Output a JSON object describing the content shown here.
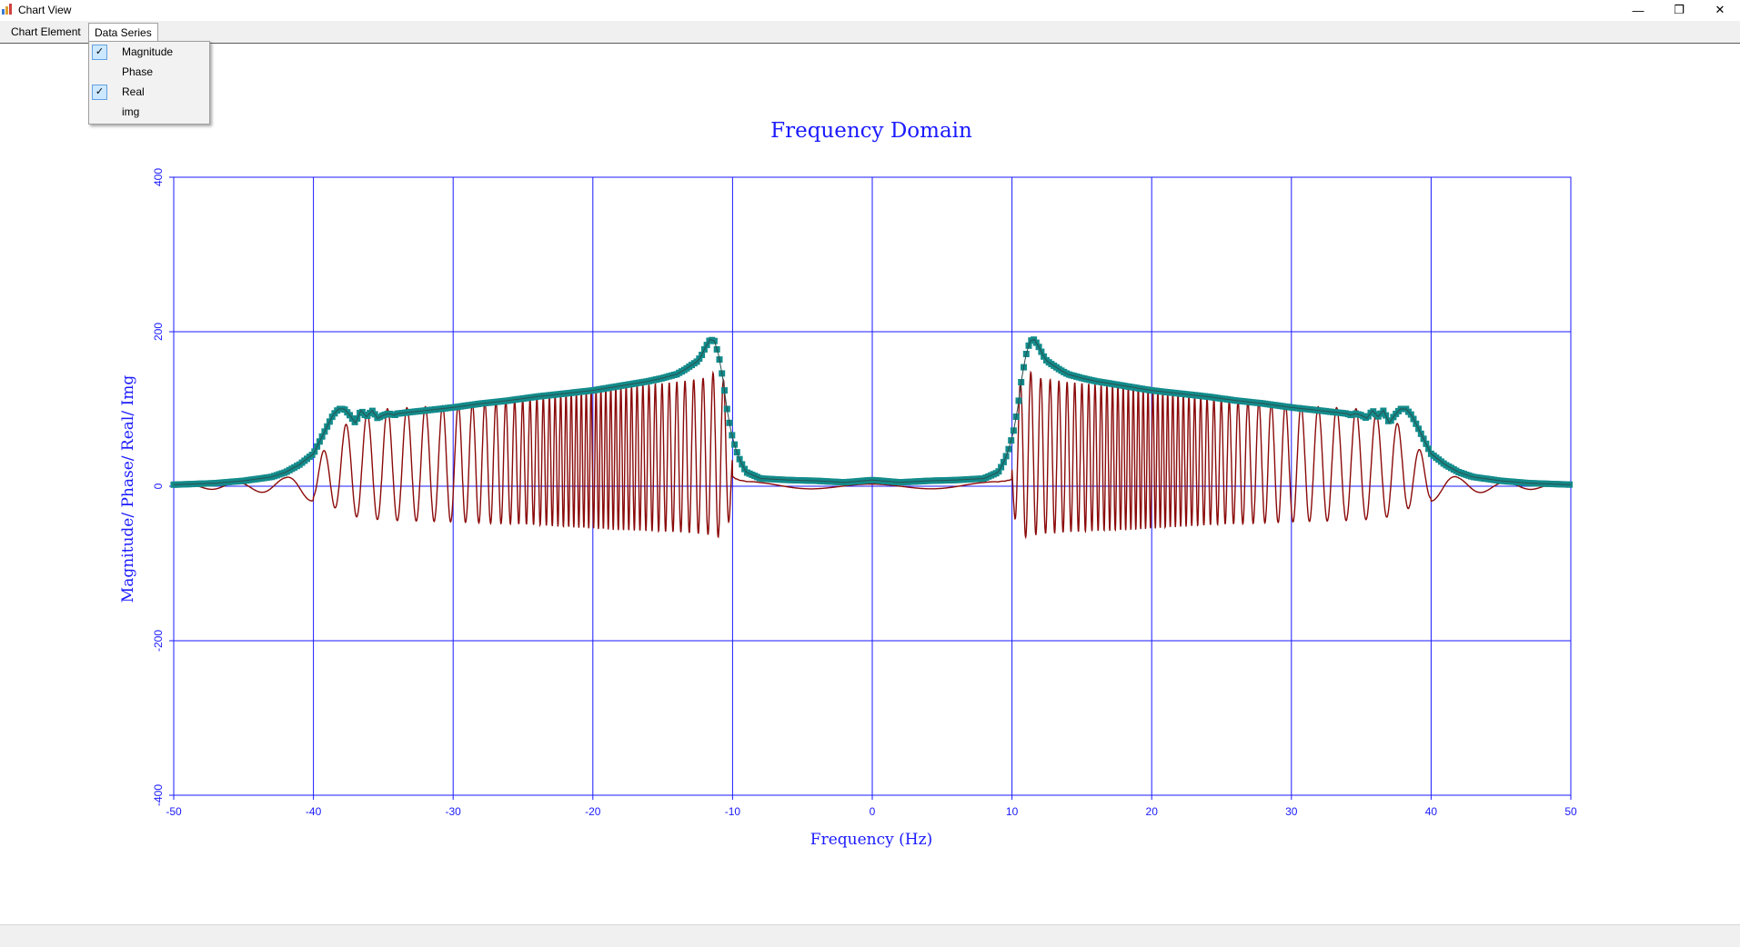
{
  "window": {
    "title": "Chart View",
    "minimize_icon": "minimize-icon",
    "restore_icon": "restore-icon",
    "close_icon": "close-icon"
  },
  "menu": {
    "chart_element": "Chart Element",
    "data_series": "Data Series"
  },
  "dropdown": {
    "items": [
      {
        "label": "Magnitude",
        "checked": true
      },
      {
        "label": "Phase",
        "checked": false
      },
      {
        "label": "Real",
        "checked": true
      },
      {
        "label": "img",
        "checked": false
      }
    ]
  },
  "colors": {
    "axis_grid": "#1a1aff",
    "magnitude": "#138b8b",
    "real": "#8b0a0a",
    "title": "#1a1aff"
  },
  "chart_data": {
    "type": "line",
    "title": "Frequency Domain",
    "xlabel": "Frequency (Hz)",
    "ylabel": "Magnitude/ Phase/ Real/ Img",
    "xlim": [
      -50,
      50
    ],
    "ylim": [
      -400,
      400
    ],
    "xticks": [
      -50,
      -40,
      -30,
      -20,
      -10,
      0,
      10,
      20,
      30,
      40,
      50
    ],
    "yticks": [
      -400,
      -200,
      0,
      200,
      400
    ],
    "grid": true,
    "legend": "none",
    "series": [
      {
        "name": "Magnitude",
        "style": "markers",
        "x": [
          -50,
          -47,
          -45,
          -43,
          -42,
          -41,
          -40,
          -39.5,
          -39,
          -38.6,
          -38.2,
          -37.8,
          -37.4,
          -37,
          -36.6,
          -36.2,
          -35.8,
          -35.4,
          -35,
          -34.6,
          -34.2,
          -34,
          -32,
          -30,
          -28,
          -26,
          -24,
          -22,
          -20,
          -18,
          -16,
          -15,
          -14,
          -13.5,
          -13,
          -12.5,
          -12.2,
          -12,
          -11.6,
          -11.3,
          -11,
          -10.7,
          -10.4,
          -10.1,
          -9.8,
          -9.5,
          -9.2,
          -9,
          -8,
          -6,
          -4,
          -2,
          0,
          2,
          4,
          6,
          8,
          9,
          9.2,
          9.5,
          9.8,
          10.1,
          10.4,
          10.7,
          11,
          11.3,
          11.6,
          12,
          12.2,
          12.5,
          13,
          13.5,
          14,
          15,
          16,
          18,
          20,
          22,
          24,
          26,
          28,
          30,
          32,
          34,
          34.2,
          34.6,
          35,
          35.4,
          35.8,
          36.2,
          36.6,
          37,
          37.4,
          37.8,
          38.2,
          38.6,
          39,
          39.5,
          40,
          41,
          42,
          43,
          45,
          47,
          50
        ],
        "y": [
          2,
          4,
          7,
          12,
          18,
          28,
          42,
          60,
          78,
          92,
          100,
          100,
          92,
          82,
          98,
          90,
          98,
          88,
          92,
          94,
          92,
          94,
          98,
          102,
          107,
          111,
          116,
          120,
          124,
          130,
          136,
          140,
          145,
          150,
          156,
          162,
          170,
          178,
          190,
          188,
          170,
          140,
          100,
          70,
          50,
          35,
          24,
          18,
          10,
          8,
          7,
          5,
          8,
          5,
          7,
          8,
          10,
          18,
          24,
          35,
          50,
          70,
          100,
          140,
          170,
          188,
          190,
          178,
          170,
          162,
          156,
          150,
          145,
          140,
          136,
          130,
          124,
          120,
          116,
          111,
          107,
          102,
          98,
          94,
          92,
          94,
          92,
          88,
          98,
          90,
          98,
          82,
          92,
          100,
          100,
          92,
          78,
          60,
          42,
          28,
          18,
          12,
          7,
          4,
          2
        ]
      },
      {
        "name": "Real",
        "style": "line",
        "envelope_x": [
          -50,
          -45,
          -42,
          -41,
          -40,
          -39,
          -38,
          -37,
          -36,
          -35,
          -33,
          -30,
          -27,
          -25,
          -22,
          -20,
          -18,
          -16,
          -14,
          -12,
          -11.5,
          -11.2,
          -11,
          -10.8,
          -10.5,
          -10.3,
          -10,
          -9.8,
          -9.5,
          -9,
          -8,
          -6,
          -4,
          -2,
          0,
          2,
          4,
          6,
          8,
          9,
          9.5,
          9.8,
          10,
          10.3,
          10.5,
          10.8,
          11,
          11.2,
          11.5,
          12,
          14,
          16,
          18,
          20,
          22,
          25,
          27,
          30,
          33,
          35,
          36,
          37,
          38,
          39,
          40,
          41,
          42,
          45,
          50
        ],
        "envelope_y": [
          4,
          10,
          20,
          30,
          35,
          50,
          75,
          90,
          95,
          100,
          102,
          105,
          110,
          112,
          120,
          125,
          130,
          132,
          135,
          140,
          145,
          150,
          150,
          145,
          130,
          110,
          60,
          35,
          20,
          12,
          9,
          7,
          6,
          5,
          5,
          5,
          6,
          7,
          9,
          12,
          20,
          35,
          60,
          110,
          130,
          145,
          150,
          150,
          145,
          140,
          135,
          132,
          130,
          125,
          120,
          112,
          110,
          105,
          102,
          100,
          95,
          90,
          75,
          50,
          35,
          30,
          20,
          10,
          4
        ]
      }
    ]
  }
}
